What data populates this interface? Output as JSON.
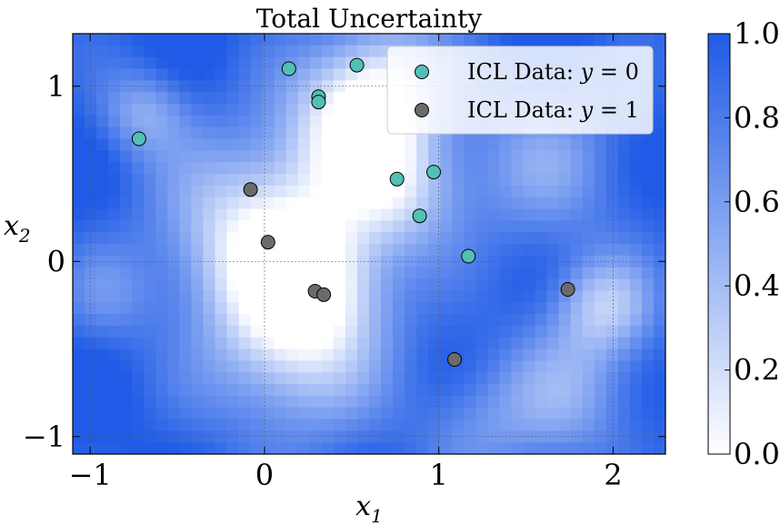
{
  "chart_data": {
    "type": "heatmap",
    "title": "Total Uncertainty",
    "xlabel": "x",
    "xlabel_sub": "1",
    "ylabel": "x",
    "ylabel_sub": "2",
    "xlim": [
      -1.1,
      2.3
    ],
    "ylim": [
      -1.1,
      1.3
    ],
    "x_ticks": [
      -1,
      0,
      1,
      2
    ],
    "x_tick_labels": [
      "−1",
      "0",
      "1",
      "2"
    ],
    "y_ticks": [
      -1,
      0,
      1
    ],
    "y_tick_labels": [
      "−1",
      "0",
      "1"
    ],
    "grid": true,
    "legend_position": "top-right",
    "colorbar": {
      "range": [
        0.0,
        1.0
      ],
      "ticks": [
        0.0,
        0.2,
        0.4,
        0.6,
        0.8,
        1.0
      ],
      "tick_labels": [
        "0.0",
        "0.2",
        "0.4",
        "0.6",
        "0.8",
        "1.0"
      ],
      "color_low": "#ffffff",
      "color_high": "#1f5be6"
    },
    "series": [
      {
        "name": "ICL Data: y = 0",
        "label_prefix": "ICL Data: ",
        "label_var": "y",
        "label_eq": " = 0",
        "color": "#52c0b4",
        "points": [
          [
            -0.72,
            0.7
          ],
          [
            0.14,
            1.1
          ],
          [
            0.31,
            0.94
          ],
          [
            0.31,
            0.91
          ],
          [
            0.53,
            1.12
          ],
          [
            0.76,
            0.47
          ],
          [
            0.97,
            0.51
          ],
          [
            0.89,
            0.26
          ],
          [
            1.17,
            0.03
          ]
        ]
      },
      {
        "name": "ICL Data: y = 1",
        "label_prefix": "ICL Data: ",
        "label_var": "y",
        "label_eq": " = 1",
        "color": "#6b6b6b",
        "points": [
          [
            -0.08,
            0.41
          ],
          [
            0.02,
            0.11
          ],
          [
            0.29,
            -0.17
          ],
          [
            0.34,
            -0.19
          ],
          [
            1.09,
            -0.56
          ],
          [
            1.74,
            -0.16
          ]
        ]
      }
    ]
  }
}
